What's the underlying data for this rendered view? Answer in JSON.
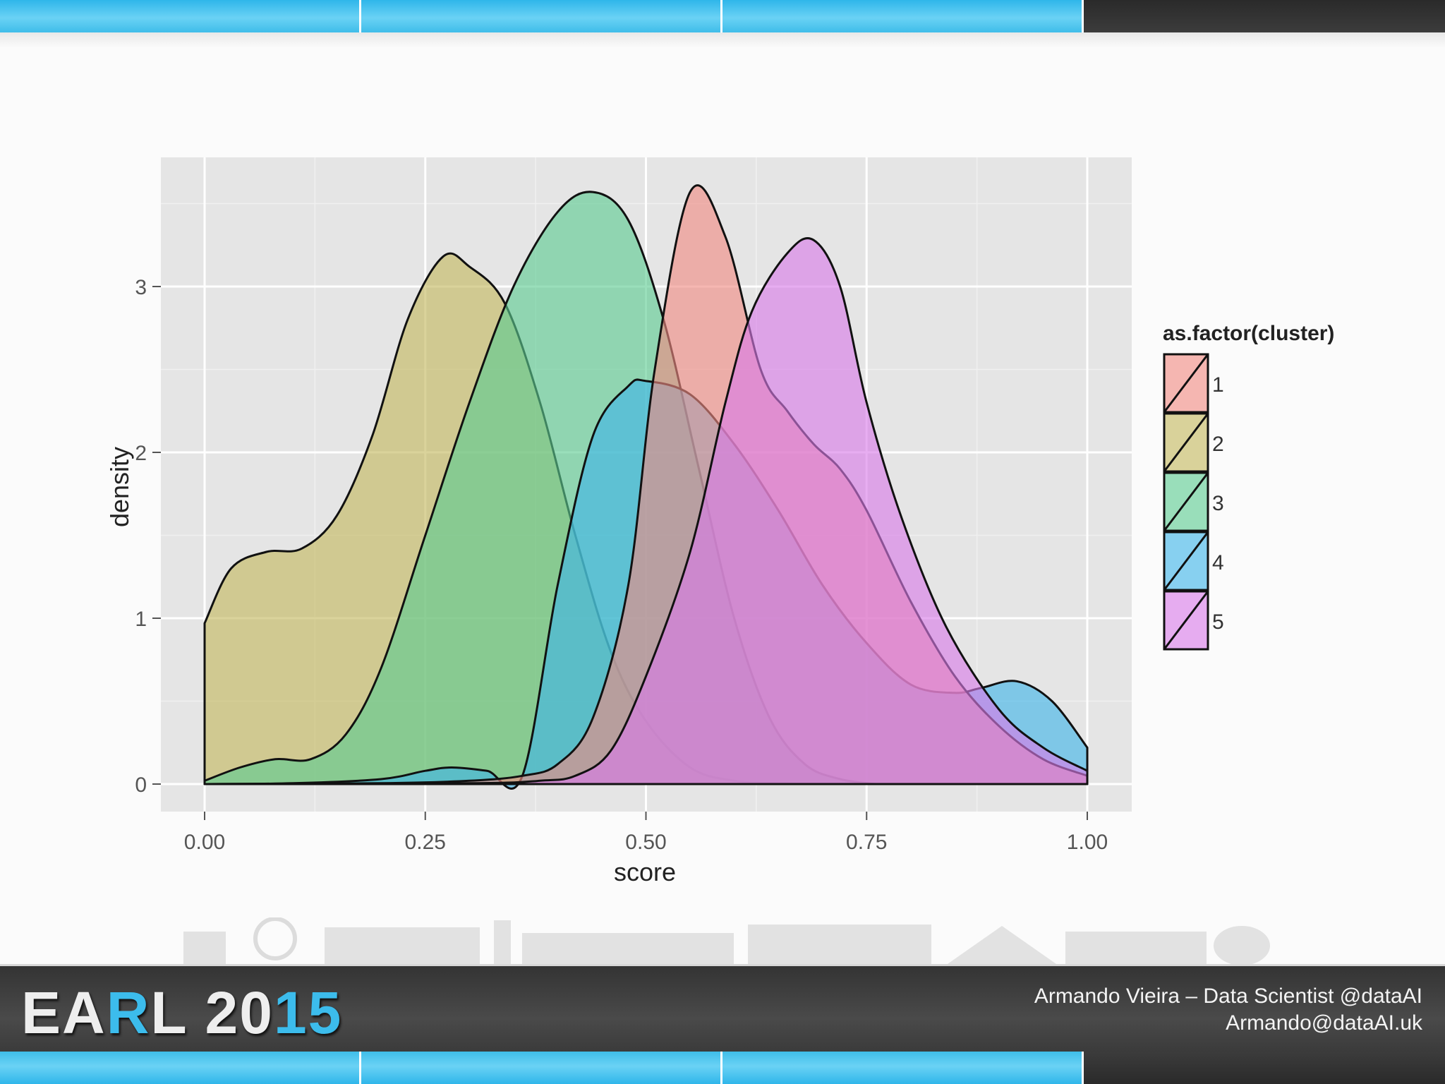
{
  "slide": {
    "footer_logo": {
      "before": "EA",
      "highlight1": "R",
      "middle": "L 20",
      "highlight2": "15"
    },
    "credit_line1": "Armando Vieira – Data Scientist @dataAI",
    "credit_line2": "Armando@dataAI.uk",
    "colors": {
      "bar_blue": "#4cc6ee",
      "bar_dark": "#2f2f2f",
      "footer": "#3d3d3d",
      "logo_accent": "#3cbcec"
    }
  },
  "chart_data": {
    "type": "area",
    "subtype": "density",
    "xlabel": "score",
    "ylabel": "density",
    "xlim": [
      0,
      1
    ],
    "ylim": [
      0,
      3.6
    ],
    "xticks": [
      "0.00",
      "0.25",
      "0.50",
      "0.75",
      "1.00"
    ],
    "yticks": [
      "0",
      "1",
      "2",
      "3"
    ],
    "grid": true,
    "panel_background": "#e5e5e5",
    "legend": {
      "title": "as.factor(cluster)",
      "position": "right"
    },
    "series": [
      {
        "name": "2",
        "color": "#c4b85e",
        "x": [
          0,
          0.03,
          0.07,
          0.11,
          0.15,
          0.19,
          0.23,
          0.27,
          0.3,
          0.34,
          0.38,
          0.42,
          0.46,
          0.5,
          0.55,
          0.6,
          0.65,
          0.7
        ],
        "y": [
          0.97,
          1.3,
          1.4,
          1.42,
          1.62,
          2.1,
          2.8,
          3.18,
          3.12,
          2.9,
          2.3,
          1.5,
          0.8,
          0.38,
          0.1,
          0.02,
          0.005,
          0
        ]
      },
      {
        "name": "3",
        "color": "#5ccc91",
        "x": [
          0,
          0.04,
          0.08,
          0.12,
          0.16,
          0.2,
          0.25,
          0.3,
          0.35,
          0.4,
          0.44,
          0.48,
          0.52,
          0.56,
          0.6,
          0.64,
          0.68,
          0.72,
          0.76
        ],
        "y": [
          0.02,
          0.1,
          0.15,
          0.15,
          0.3,
          0.7,
          1.5,
          2.3,
          3.0,
          3.45,
          3.57,
          3.4,
          2.8,
          1.9,
          1.0,
          0.4,
          0.12,
          0.03,
          0
        ]
      },
      {
        "name": "4",
        "color": "#3fb4e8",
        "x": [
          0,
          0.1,
          0.2,
          0.25,
          0.28,
          0.32,
          0.36,
          0.4,
          0.44,
          0.48,
          0.5,
          0.55,
          0.6,
          0.65,
          0.7,
          0.75,
          0.8,
          0.85,
          0.88,
          0.92,
          0.96,
          1.0
        ],
        "y": [
          0,
          0.005,
          0.03,
          0.08,
          0.1,
          0.08,
          0.05,
          1.2,
          2.1,
          2.4,
          2.43,
          2.35,
          2.05,
          1.65,
          1.2,
          0.85,
          0.6,
          0.55,
          0.58,
          0.62,
          0.5,
          0.22
        ]
      },
      {
        "name": "1",
        "color": "#f08a83",
        "x": [
          0,
          0.2,
          0.3,
          0.36,
          0.4,
          0.44,
          0.48,
          0.51,
          0.55,
          0.59,
          0.63,
          0.66,
          0.69,
          0.72,
          0.75,
          0.8,
          0.85,
          0.9,
          0.95,
          1.0
        ],
        "y": [
          0,
          0.005,
          0.02,
          0.05,
          0.12,
          0.4,
          1.2,
          2.5,
          3.57,
          3.3,
          2.5,
          2.25,
          2.05,
          1.9,
          1.65,
          1.1,
          0.65,
          0.35,
          0.15,
          0.05
        ]
      },
      {
        "name": "5",
        "color": "#d97ae8",
        "x": [
          0,
          0.3,
          0.38,
          0.42,
          0.46,
          0.5,
          0.55,
          0.59,
          0.62,
          0.66,
          0.69,
          0.72,
          0.75,
          0.79,
          0.84,
          0.9,
          0.95,
          1.0
        ],
        "y": [
          0,
          0.005,
          0.02,
          0.05,
          0.2,
          0.65,
          1.4,
          2.3,
          2.85,
          3.2,
          3.28,
          3.0,
          2.3,
          1.6,
          0.95,
          0.45,
          0.22,
          0.08
        ]
      }
    ]
  }
}
